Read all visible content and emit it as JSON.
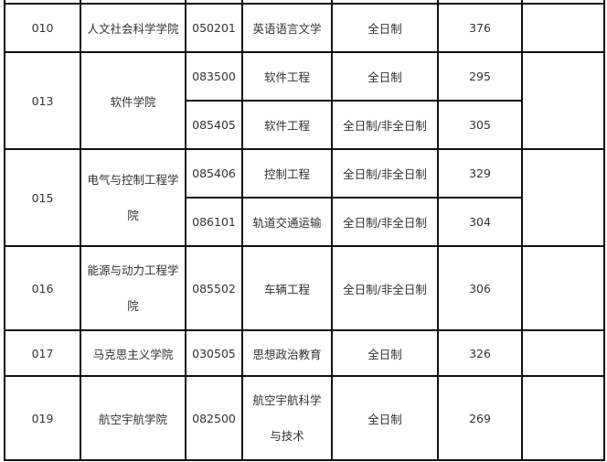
{
  "rows": [
    {
      "code": "010",
      "college": "人文社会科学学院",
      "majors": [
        {
          "major_code": "050201",
          "major": "英语语言文学",
          "mode": "全日制",
          "score": "376",
          "note": ""
        }
      ]
    },
    {
      "code": "013",
      "college": "软件学院",
      "majors": [
        {
          "major_code": "083500",
          "major": "软件工程",
          "mode": "全日制",
          "score": "295",
          "note": ""
        },
        {
          "major_code": "085405",
          "major": "软件工程",
          "mode": "全日制/非全日制",
          "score": "305",
          "note": ""
        }
      ]
    },
    {
      "code": "015",
      "college": "电气与控制工程学院",
      "majors": [
        {
          "major_code": "085406",
          "major": "控制工程",
          "mode": "全日制/非全日制",
          "score": "329",
          "note": ""
        },
        {
          "major_code": "086101",
          "major": "轨道交通运输",
          "mode": "全日制/非全日制",
          "score": "304",
          "note": ""
        }
      ]
    },
    {
      "code": "016",
      "college": "能源与动力工程学院",
      "majors": [
        {
          "major_code": "085502",
          "major": "车辆工程",
          "mode": "全日制/非全日制",
          "score": "306",
          "note": ""
        }
      ]
    },
    {
      "code": "017",
      "college": "马克思主义学院",
      "majors": [
        {
          "major_code": "030505",
          "major": "思想政治教育",
          "mode": "全日制",
          "score": "326",
          "note": ""
        }
      ]
    },
    {
      "code": "019",
      "college": "航空宇航学院",
      "majors": [
        {
          "major_code": "082500",
          "major": "航空宇航科学与技术",
          "mode": "全日制",
          "score": "269",
          "note": ""
        }
      ]
    }
  ]
}
